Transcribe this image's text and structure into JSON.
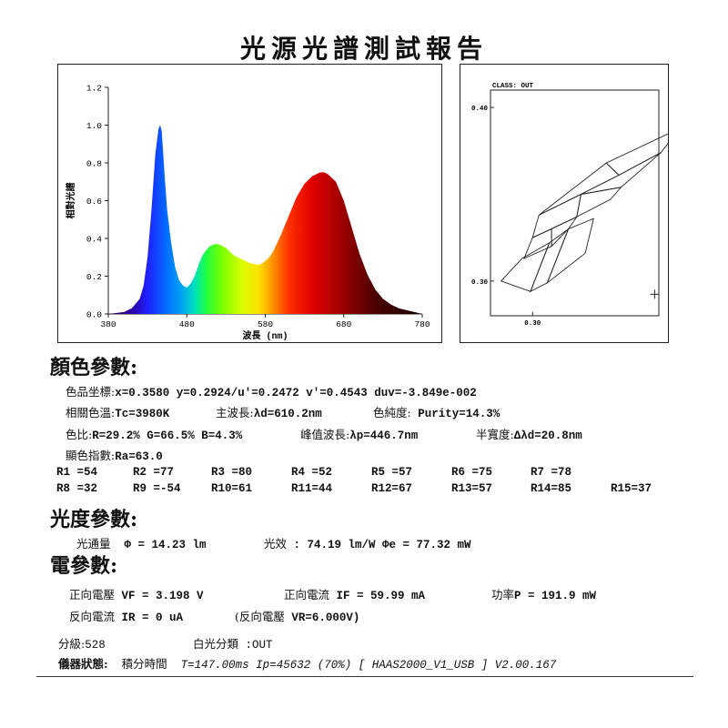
{
  "title": "光源光譜測試報告",
  "chart_data": [
    {
      "type": "area",
      "title": "",
      "xlabel": "波長 (nm)",
      "ylabel": "相對光譜",
      "xlim": [
        380,
        780
      ],
      "ylim": [
        0,
        1.2
      ],
      "xticks": [
        380,
        480,
        580,
        680,
        780
      ],
      "yticks": [
        "0.0",
        "0.2",
        "0.4",
        "0.6",
        "0.8",
        "1.0",
        "1.2"
      ],
      "fill": "visible-spectrum gradient",
      "x": [
        380,
        400,
        410,
        420,
        425,
        430,
        435,
        440,
        444,
        446,
        448,
        450,
        452,
        455,
        460,
        465,
        470,
        475,
        480,
        485,
        490,
        495,
        500,
        505,
        510,
        515,
        520,
        525,
        530,
        535,
        540,
        545,
        550,
        555,
        560,
        565,
        570,
        575,
        580,
        585,
        590,
        600,
        610,
        620,
        630,
        640,
        650,
        655,
        660,
        670,
        680,
        690,
        700,
        710,
        720,
        730,
        740,
        750,
        760,
        770,
        780
      ],
      "values": [
        0,
        0.01,
        0.03,
        0.08,
        0.15,
        0.3,
        0.55,
        0.85,
        0.98,
        1.0,
        0.97,
        0.85,
        0.72,
        0.55,
        0.38,
        0.25,
        0.18,
        0.15,
        0.14,
        0.16,
        0.2,
        0.26,
        0.31,
        0.34,
        0.36,
        0.37,
        0.37,
        0.36,
        0.35,
        0.33,
        0.31,
        0.3,
        0.29,
        0.28,
        0.27,
        0.265,
        0.26,
        0.265,
        0.28,
        0.3,
        0.33,
        0.42,
        0.52,
        0.62,
        0.69,
        0.73,
        0.75,
        0.75,
        0.74,
        0.7,
        0.6,
        0.46,
        0.32,
        0.21,
        0.13,
        0.08,
        0.05,
        0.03,
        0.02,
        0.01,
        0.0
      ]
    },
    {
      "type": "scatter",
      "title": "CLASS: OUT",
      "xlim": [
        0.28,
        0.36
      ],
      "ylim": [
        0.28,
        0.41
      ],
      "xticks": [
        "0.30"
      ],
      "yticks": [
        "0.30",
        "0.40"
      ],
      "bins": [
        [
          [
            0.285,
            0.3
          ],
          [
            0.295,
            0.313
          ],
          [
            0.308,
            0.322
          ],
          [
            0.299,
            0.294
          ]
        ],
        [
          [
            0.299,
            0.294
          ],
          [
            0.308,
            0.322
          ],
          [
            0.317,
            0.33
          ],
          [
            0.307,
            0.299
          ]
        ],
        [
          [
            0.307,
            0.299
          ],
          [
            0.317,
            0.33
          ],
          [
            0.329,
            0.336
          ],
          [
            0.325,
            0.316
          ]
        ],
        [
          [
            0.296,
            0.313
          ],
          [
            0.309,
            0.32
          ],
          [
            0.309,
            0.33
          ],
          [
            0.3,
            0.325
          ]
        ],
        [
          [
            0.309,
            0.32
          ],
          [
            0.317,
            0.33
          ],
          [
            0.321,
            0.337
          ],
          [
            0.309,
            0.33
          ]
        ],
        [
          [
            0.3,
            0.325
          ],
          [
            0.321,
            0.337
          ],
          [
            0.323,
            0.35
          ],
          [
            0.303,
            0.338
          ]
        ],
        [
          [
            0.321,
            0.337
          ],
          [
            0.337,
            0.347
          ],
          [
            0.342,
            0.354
          ],
          [
            0.323,
            0.35
          ]
        ],
        [
          [
            0.303,
            0.338
          ],
          [
            0.323,
            0.35
          ],
          [
            0.341,
            0.361
          ],
          [
            0.335,
            0.368
          ]
        ],
        [
          [
            0.323,
            0.35
          ],
          [
            0.342,
            0.354
          ],
          [
            0.361,
            0.374
          ],
          [
            0.341,
            0.361
          ]
        ],
        [
          [
            0.335,
            0.368
          ],
          [
            0.341,
            0.361
          ],
          [
            0.361,
            0.374
          ],
          [
            0.37,
            0.388
          ]
        ]
      ],
      "point": {
        "x": 0.358,
        "y": 0.2924
      }
    }
  ],
  "color_params": {
    "heading": "顏色參數:",
    "chromaticity_label": "色品坐標:",
    "chromaticity_values": "x=0.3580   y=0.2924/u'=0.2472   v'=0.4543    duv=-3.849e-002",
    "cct_label": "相關色溫:",
    "cct_value": "Tc=3980K",
    "dominant_label": "主波長:",
    "dominant_value": "λd=610.2nm",
    "purity_label": "色純度:",
    "purity_value": "Purity=14.3%",
    "ratio_label": "色比:",
    "ratio_value": "R=29.2% G=66.5% B=4.3%",
    "peak_label": "峰值波長:",
    "peak_value": "λp=446.7nm",
    "fwhm_label": "半寬度:",
    "fwhm_value": "Δλd=20.8nm",
    "cri_label": "顯色指數:",
    "cri_value": "Ra=63.0",
    "r_values": [
      "R1 =54",
      "R2 =77",
      "R3 =80",
      "R4 =52",
      "R5 =57",
      "R6 =75",
      "R7 =78",
      "R8 =32",
      "R9 =-54",
      "R10=61",
      "R11=44",
      "R12=67",
      "R13=57",
      "R14=85",
      "R15=37"
    ]
  },
  "photometric": {
    "heading": "光度參數:",
    "flux_label": "光通量",
    "flux_value": "Φ  = 14.23 lm",
    "efficacy_label": "光效",
    "efficacy_value": ": 74.19 lm/W  Φe  = 77.32 mW"
  },
  "electrical": {
    "heading": "電參數:",
    "vf_label": "正向電壓",
    "vf_value": "VF = 3.198 V",
    "if_label": "正向電流",
    "if_value": "IF = 59.99 mA",
    "power_label": "功率",
    "power_value": "P = 191.9 mW",
    "ir_label": "反向電流",
    "ir_value": "IR = 0 uA",
    "vr_label": "(反向電壓",
    "vr_value": "VR=6.000V)"
  },
  "footer": {
    "grade_label": "分級:",
    "grade_value": "528",
    "white_label": "白光分類",
    "white_value": ":OUT",
    "instrument_label": "儀器狀態:",
    "integral_label": "積分時間",
    "integral_value": "T=147.00ms  Ip=45632 (70%)   [ HAAS2000_V1_USB ] V2.00.167"
  }
}
